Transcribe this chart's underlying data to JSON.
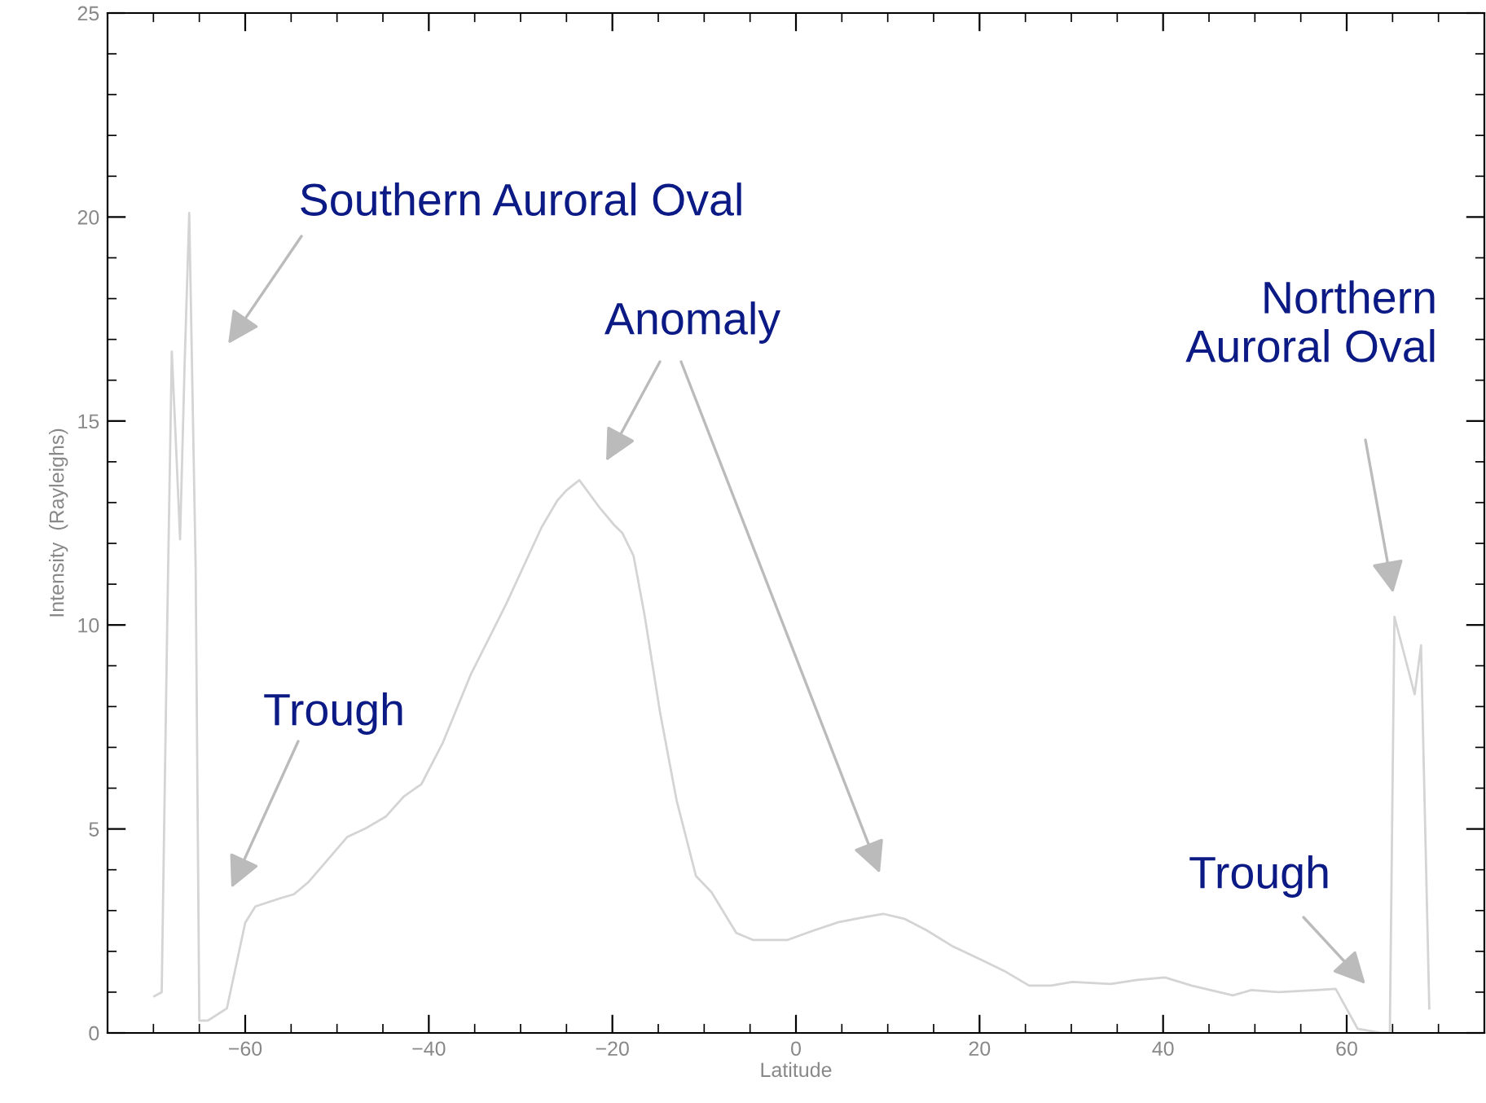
{
  "chart_data": {
    "type": "line",
    "xlabel": "Latitude",
    "ylabel": "Intensity  (Rayleighs)",
    "xlim": [
      -75,
      75
    ],
    "xticks": [
      -60,
      -40,
      -20,
      0,
      20,
      40,
      60
    ],
    "ylim": [
      0,
      25
    ],
    "yticks": [
      0,
      5,
      10,
      15,
      20,
      25
    ],
    "grid": false,
    "legend": false,
    "series": [
      {
        "color": "#d4d4d4",
        "line_style": "solid",
        "marker": "none",
        "x": [
          -69.9,
          -69.1,
          -68.5,
          -68.0,
          -67.5,
          -67.1,
          -66.6,
          -66.1,
          -65.4,
          -65.0,
          -64.1,
          -62.0,
          -60.0,
          -58.9,
          -56.2,
          -54.7,
          -53.1,
          -50.8,
          -48.9,
          -47.0,
          -44.7,
          -42.7,
          -40.8,
          -38.5,
          -35.4,
          -31.6,
          -27.7,
          -26.0,
          -25.0,
          -23.6,
          -21.3,
          -19.8,
          -18.9,
          -17.7,
          -16.5,
          -14.8,
          -13.0,
          -10.9,
          -9.2,
          -6.5,
          -4.7,
          -0.9,
          1.8,
          4.7,
          7.7,
          9.5,
          11.8,
          14.2,
          17.1,
          20.1,
          22.7,
          25.4,
          27.8,
          30.1,
          34.3,
          37.2,
          40.2,
          43.1,
          47.6,
          49.6,
          52.6,
          56.7,
          58.8,
          61.2,
          63.8,
          64.7,
          65.2,
          66.6,
          67.4,
          68.1,
          69.0
        ],
        "values": [
          0.9,
          1.0,
          10.0,
          16.7,
          14.2,
          12.1,
          16.4,
          20.1,
          11.4,
          0.3,
          0.3,
          0.6,
          2.7,
          3.1,
          3.3,
          3.4,
          3.7,
          4.3,
          4.8,
          5.0,
          5.3,
          5.8,
          6.1,
          7.1,
          8.8,
          10.5,
          12.4,
          13.05,
          13.3,
          13.55,
          12.85,
          12.45,
          12.25,
          11.7,
          10.25,
          7.85,
          5.7,
          3.85,
          3.45,
          2.45,
          2.28,
          2.28,
          2.5,
          2.72,
          2.85,
          2.92,
          2.8,
          2.52,
          2.12,
          1.8,
          1.52,
          1.16,
          1.16,
          1.25,
          1.2,
          1.3,
          1.36,
          1.16,
          0.92,
          1.05,
          1.0,
          1.05,
          1.08,
          0.1,
          0.0,
          0.0,
          10.2,
          9.0,
          8.3,
          9.5,
          0.6
        ]
      }
    ],
    "annotations": [
      "Southern Auroral Oval",
      "Anomaly",
      "Northern\nAuroral Oval",
      "Trough",
      "Trough"
    ]
  }
}
